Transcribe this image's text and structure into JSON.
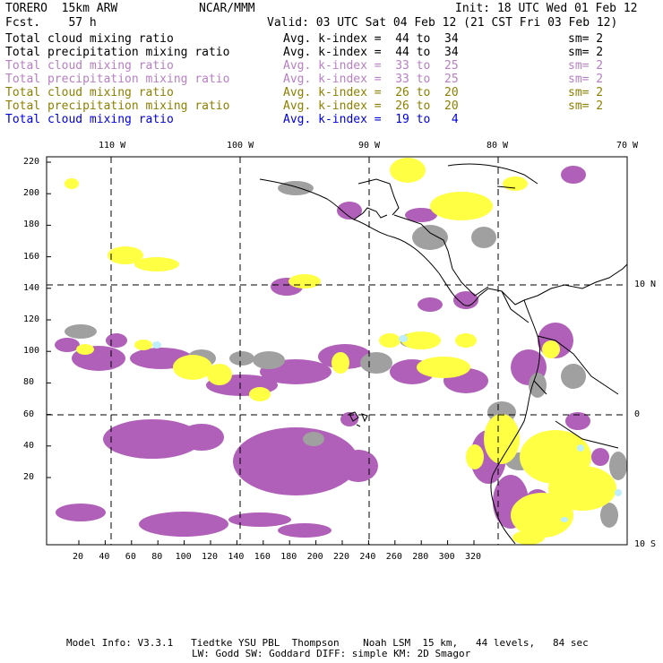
{
  "header": {
    "model": "TORERO  15km ARW",
    "org": "NCAR/MMM",
    "init": "Init: 18 UTC Wed 01 Feb 12",
    "fcst": "Fcst.    57 h",
    "valid": "Valid: 03 UTC Sat 04 Feb 12 (21 CST Fri 03 Feb 12)"
  },
  "legend": [
    {
      "field": "Total cloud mixing ratio",
      "range": "Avg. k-index =  44 to  34",
      "sm": "sm= 2",
      "color": "#000000"
    },
    {
      "field": "Total precipitation mixing ratio",
      "range": "Avg. k-index =  44 to  34",
      "sm": "sm= 2",
      "color": "#000000"
    },
    {
      "field": "Total cloud mixing ratio",
      "range": "Avg. k-index =  33 to  25",
      "sm": "sm= 2",
      "color": "#b87fc4"
    },
    {
      "field": "Total precipitation mixing ratio",
      "range": "Avg. k-index =  33 to  25",
      "sm": "sm= 2",
      "color": "#b87fc4"
    },
    {
      "field": "Total cloud mixing ratio",
      "range": "Avg. k-index =  26 to  20",
      "sm": "sm= 2",
      "color": "#8c8000"
    },
    {
      "field": "Total precipitation mixing ratio",
      "range": "Avg. k-index =  26 to  20",
      "sm": "sm= 2",
      "color": "#8c8000"
    },
    {
      "field": "Total cloud mixing ratio",
      "range": "Avg. k-index =  19 to   4",
      "sm": "",
      "color": "#0000dd"
    }
  ],
  "map": {
    "lon_labels": [
      "110 W",
      "100 W",
      "90 W",
      "80 W",
      "70 W"
    ],
    "lat_labels": [
      "10 N",
      "0",
      "10 S"
    ],
    "y_ticks": [
      "220",
      "200",
      "180",
      "160",
      "140",
      "120",
      "100",
      "80",
      "60",
      "40",
      "20"
    ],
    "x_ticks": [
      "20",
      "40",
      "60",
      "80",
      "100",
      "120",
      "140",
      "160",
      "180",
      "200",
      "220",
      "240",
      "260",
      "280",
      "300",
      "320"
    ]
  },
  "footer": {
    "line1": "Model Info: V3.3.1   Tiedtke YSU PBL  Thompson    Noah LSM  15 km,   44 levels,   84 sec",
    "line2": "LW: Godd SW: Goddard DIFF: simple KM: 2D Smagor"
  },
  "colors": {
    "purple": "#b060b8",
    "yellow": "#ffff44",
    "gray": "#a0a0a0",
    "cyan": "#bfeeff"
  }
}
